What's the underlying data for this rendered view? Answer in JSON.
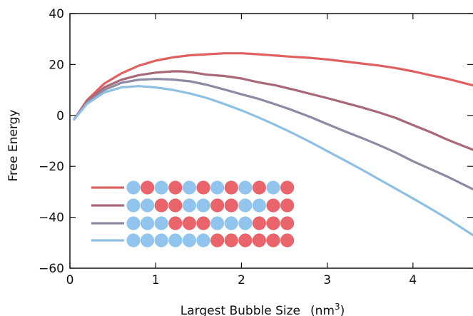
{
  "chart_data": {
    "type": "line",
    "title": "",
    "xlabel": "Largest Bubble Size",
    "xlabel_unit": "(nm",
    "xlabel_unit_exp": "3",
    "xlabel_unit_close": ")",
    "ylabel": "Free Energy",
    "xlim": [
      0,
      4.7
    ],
    "ylim": [
      -60,
      40
    ],
    "xticks": [
      0,
      1,
      2,
      3,
      4
    ],
    "yticks": [
      40,
      20,
      0,
      -20,
      -40,
      -60
    ],
    "ytick_labels": [
      "40",
      "20",
      "0",
      "−20",
      "−40",
      "−60"
    ],
    "grid": false,
    "legend_placement": "lower-left",
    "series": [
      {
        "color": "#e06060",
        "legend_pattern": [
          "b",
          "r",
          "b",
          "r",
          "b",
          "r",
          "b",
          "r",
          "b",
          "r",
          "b",
          "r"
        ],
        "x": [
          0.05,
          0.2,
          0.4,
          0.6,
          0.8,
          1.0,
          1.2,
          1.4,
          1.6,
          1.8,
          2.0,
          2.2,
          2.4,
          2.6,
          2.8,
          3.0,
          3.2,
          3.4,
          3.6,
          3.8,
          4.0,
          4.2,
          4.4,
          4.7
        ],
        "y": [
          -1.5,
          6,
          12.5,
          16.5,
          19.5,
          21.5,
          22.8,
          23.6,
          24.0,
          24.4,
          24.4,
          24.0,
          23.5,
          23.0,
          22.6,
          22.0,
          21.2,
          20.4,
          19.6,
          18.6,
          17.3,
          15.8,
          14.4,
          11.8
        ]
      },
      {
        "color": "#a86878",
        "legend_pattern": [
          "b",
          "b",
          "r",
          "r",
          "b",
          "b",
          "r",
          "r",
          "b",
          "b",
          "r",
          "r"
        ],
        "x": [
          0.05,
          0.2,
          0.4,
          0.6,
          0.8,
          1.0,
          1.2,
          1.3,
          1.4,
          1.6,
          1.8,
          2.0,
          2.2,
          2.4,
          2.6,
          2.8,
          3.0,
          3.2,
          3.4,
          3.6,
          3.8,
          4.0,
          4.2,
          4.4,
          4.7
        ],
        "y": [
          -1.5,
          5.5,
          11.0,
          14.0,
          15.8,
          16.8,
          17.3,
          17.3,
          17.0,
          16.0,
          15.5,
          14.5,
          13.0,
          11.8,
          10.2,
          8.5,
          6.8,
          5.0,
          3.2,
          1.2,
          -1.0,
          -3.8,
          -6.5,
          -9.5,
          -13.5
        ]
      },
      {
        "color": "#8e8aa4",
        "legend_pattern": [
          "b",
          "b",
          "b",
          "r",
          "r",
          "r",
          "b",
          "b",
          "b",
          "r",
          "r",
          "r"
        ],
        "x": [
          0.05,
          0.2,
          0.4,
          0.6,
          0.8,
          1.0,
          1.2,
          1.4,
          1.6,
          1.8,
          2.0,
          2.2,
          2.4,
          2.6,
          2.8,
          3.0,
          3.2,
          3.4,
          3.6,
          3.8,
          4.0,
          4.2,
          4.4,
          4.7
        ],
        "y": [
          -1.5,
          5.0,
          10.0,
          12.8,
          14.0,
          14.3,
          14.1,
          13.4,
          12.0,
          10.2,
          8.3,
          6.5,
          4.3,
          2.0,
          -0.6,
          -3.4,
          -6.2,
          -8.8,
          -11.6,
          -14.6,
          -18.0,
          -21.0,
          -24.0,
          -29.0
        ]
      },
      {
        "color": "#8ec0e4",
        "legend_pattern": [
          "b",
          "b",
          "b",
          "b",
          "b",
          "b",
          "r",
          "r",
          "r",
          "r",
          "r",
          "r"
        ],
        "x": [
          0.05,
          0.2,
          0.4,
          0.6,
          0.8,
          1.0,
          1.2,
          1.4,
          1.6,
          1.8,
          2.0,
          2.2,
          2.4,
          2.6,
          2.8,
          3.0,
          3.2,
          3.4,
          3.6,
          3.8,
          4.0,
          4.2,
          4.4,
          4.7
        ],
        "y": [
          -1.5,
          4.5,
          9.0,
          11.0,
          11.5,
          11.0,
          10.0,
          8.6,
          6.8,
          4.5,
          2.0,
          -0.8,
          -3.8,
          -7.0,
          -10.4,
          -14.0,
          -17.6,
          -21.2,
          -25.0,
          -28.8,
          -32.6,
          -36.5,
          -40.5,
          -47.0
        ]
      }
    ]
  },
  "colors": {
    "bead_blue": "#92c5ee",
    "bead_red": "#ea646c",
    "axis": "#111111"
  }
}
